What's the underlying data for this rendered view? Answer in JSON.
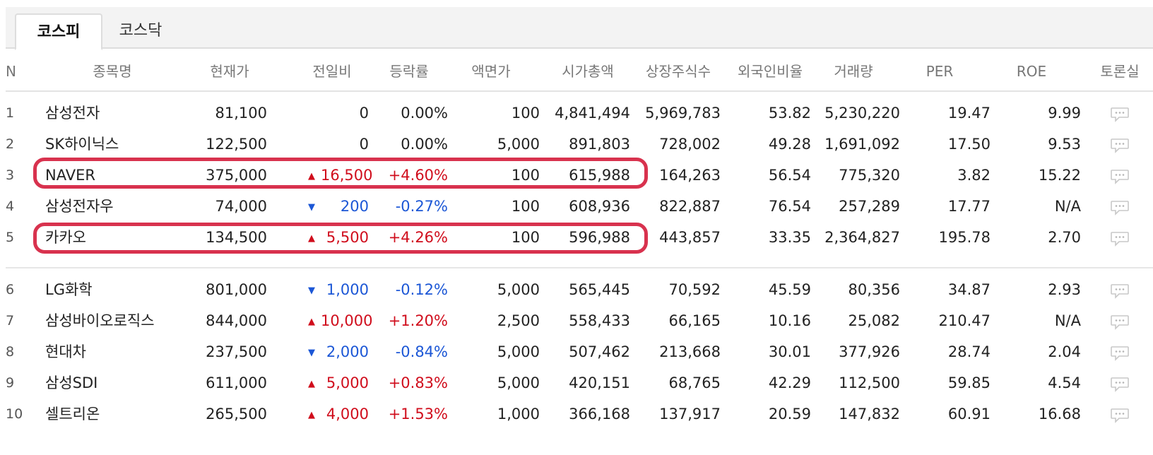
{
  "tabs": [
    {
      "label": "코스피",
      "active": true
    },
    {
      "label": "코스닥",
      "active": false
    }
  ],
  "columns": {
    "n": "N",
    "name": "종목명",
    "price": "현재가",
    "change": "전일비",
    "rate": "등락률",
    "face": "액면가",
    "cap": "시가총액",
    "shares": "상장주식수",
    "foreign": "외국인비율",
    "volume": "거래량",
    "per": "PER",
    "roe": "ROE",
    "talk": "토론실"
  },
  "rows": [
    {
      "n": "1",
      "name": "삼성전자",
      "price": "81,100",
      "dir": "none",
      "change": "0",
      "rate": "0.00%",
      "face": "100",
      "cap": "4,841,494",
      "shares": "5,969,783",
      "foreign": "53.82",
      "volume": "5,230,220",
      "per": "19.47",
      "roe": "9.99"
    },
    {
      "n": "2",
      "name": "SK하이닉스",
      "price": "122,500",
      "dir": "none",
      "change": "0",
      "rate": "0.00%",
      "face": "5,000",
      "cap": "891,803",
      "shares": "728,002",
      "foreign": "49.28",
      "volume": "1,691,092",
      "per": "17.50",
      "roe": "9.53"
    },
    {
      "n": "3",
      "name": "NAVER",
      "price": "375,000",
      "dir": "up",
      "change": "16,500",
      "rate": "+4.60%",
      "face": "100",
      "cap": "615,988",
      "shares": "164,263",
      "foreign": "56.54",
      "volume": "775,320",
      "per": "3.82",
      "roe": "15.22"
    },
    {
      "n": "4",
      "name": "삼성전자우",
      "price": "74,000",
      "dir": "down",
      "change": "200",
      "rate": "-0.27%",
      "face": "100",
      "cap": "608,936",
      "shares": "822,887",
      "foreign": "76.54",
      "volume": "257,289",
      "per": "17.77",
      "roe": "N/A"
    },
    {
      "n": "5",
      "name": "카카오",
      "price": "134,500",
      "dir": "up",
      "change": "5,500",
      "rate": "+4.26%",
      "face": "100",
      "cap": "596,988",
      "shares": "443,857",
      "foreign": "33.35",
      "volume": "2,364,827",
      "per": "195.78",
      "roe": "2.70"
    },
    {
      "n": "6",
      "name": "LG화학",
      "price": "801,000",
      "dir": "down",
      "change": "1,000",
      "rate": "-0.12%",
      "face": "5,000",
      "cap": "565,445",
      "shares": "70,592",
      "foreign": "45.59",
      "volume": "80,356",
      "per": "34.87",
      "roe": "2.93"
    },
    {
      "n": "7",
      "name": "삼성바이오로직스",
      "price": "844,000",
      "dir": "up",
      "change": "10,000",
      "rate": "+1.20%",
      "face": "2,500",
      "cap": "558,433",
      "shares": "66,165",
      "foreign": "10.16",
      "volume": "25,082",
      "per": "210.47",
      "roe": "N/A"
    },
    {
      "n": "8",
      "name": "현대차",
      "price": "237,500",
      "dir": "down",
      "change": "2,000",
      "rate": "-0.84%",
      "face": "5,000",
      "cap": "507,462",
      "shares": "213,668",
      "foreign": "30.01",
      "volume": "377,926",
      "per": "28.74",
      "roe": "2.04"
    },
    {
      "n": "9",
      "name": "삼성SDI",
      "price": "611,000",
      "dir": "up",
      "change": "5,000",
      "rate": "+0.83%",
      "face": "5,000",
      "cap": "420,151",
      "shares": "68,765",
      "foreign": "42.29",
      "volume": "112,500",
      "per": "59.85",
      "roe": "4.54"
    },
    {
      "n": "10",
      "name": "셀트리온",
      "price": "265,500",
      "dir": "up",
      "change": "4,000",
      "rate": "+1.53%",
      "face": "1,000",
      "cap": "366,168",
      "shares": "137,917",
      "foreign": "20.59",
      "volume": "147,832",
      "per": "60.91",
      "roe": "16.68"
    }
  ],
  "highlighted_rows": [
    "3",
    "5"
  ],
  "colors": {
    "up": "#d00d1c",
    "down": "#1c57d6",
    "highlight": "#d8324e"
  },
  "icons": {
    "up": "up-triangle-icon",
    "down": "down-triangle-icon",
    "talk": "speech-bubble-icon"
  }
}
